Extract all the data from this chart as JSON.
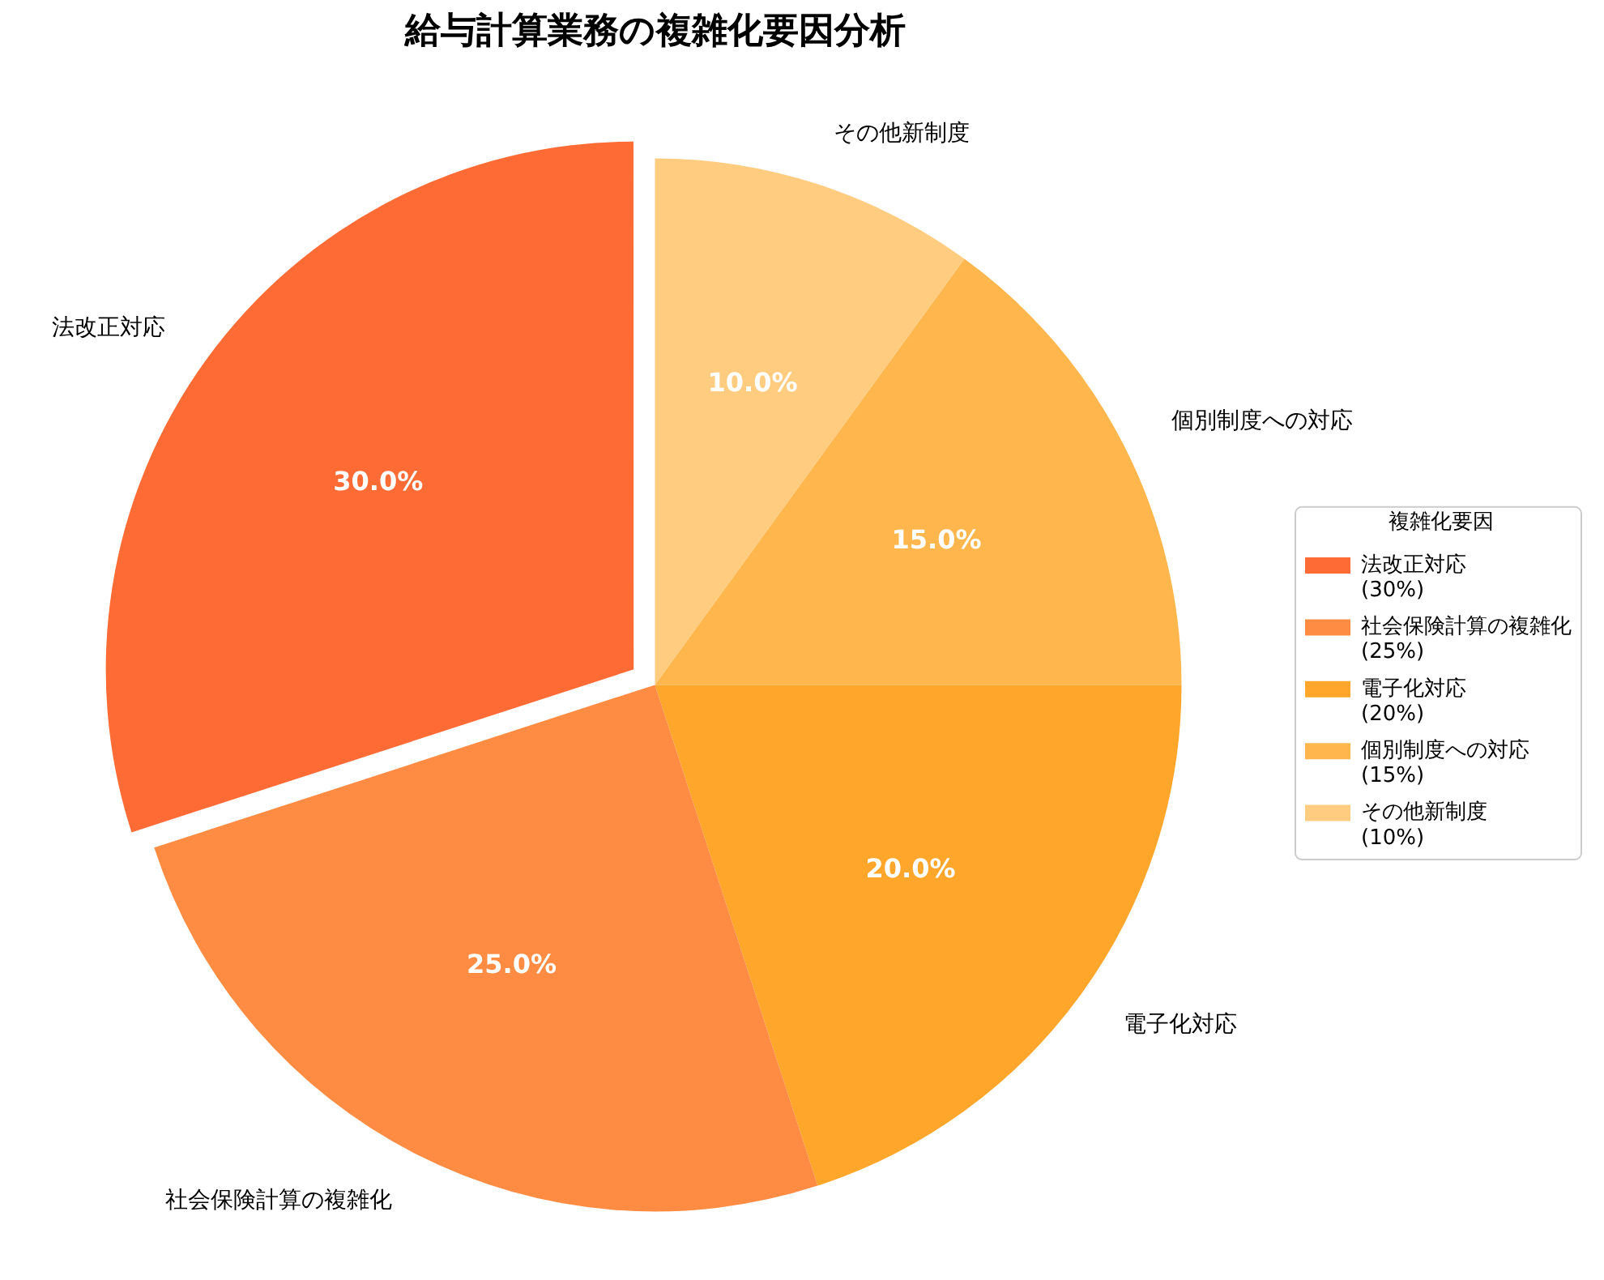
{
  "chart_data": {
    "type": "pie",
    "title": "給与計算業務の複雑化要因分析",
    "legend_title": "複雑化要因",
    "categories": [
      "法改正対応",
      "社会保険計算の複雑化",
      "電子化対応",
      "個別制度への対応",
      "その他新制度"
    ],
    "values": [
      30,
      25,
      20,
      15,
      10
    ],
    "colors": [
      "#ff6b35",
      "#ff8c42",
      "#ffa62b",
      "#ffb74d",
      "#ffcc80"
    ],
    "value_labels": [
      "30.0%",
      "25.0%",
      "20.0%",
      "15.0%",
      "10.0%"
    ],
    "annotations": [
      "(30%)",
      "(25%)",
      "(20%)",
      "(15%)",
      "(10%)"
    ],
    "legend": "right"
  }
}
